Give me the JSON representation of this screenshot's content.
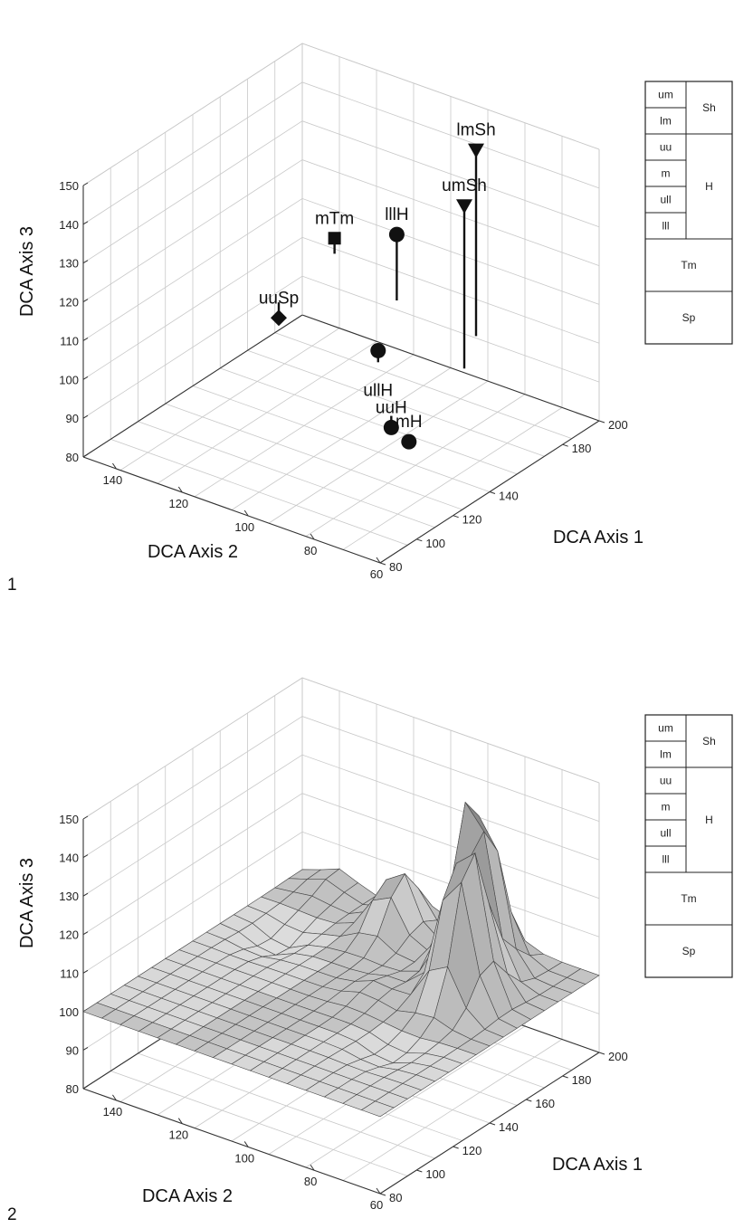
{
  "chart_data": [
    {
      "panel_label": "1",
      "type": "scatter",
      "xlabel": "DCA Axis 1",
      "ylabel": "DCA Axis 2",
      "zlabel": "DCA Axis 3",
      "x_ticks": [
        "80",
        "100",
        "120",
        "140",
        "180",
        "200"
      ],
      "y_ticks": [
        "60",
        "80",
        "100",
        "120",
        "140"
      ],
      "z_ticks": [
        "80",
        "90",
        "100",
        "110",
        "120",
        "130",
        "140",
        "150"
      ],
      "xlim": [
        80,
        200
      ],
      "ylim": [
        60,
        150
      ],
      "zlim": [
        80,
        150
      ],
      "points": [
        {
          "label": "lmSh",
          "marker": "triangle-down",
          "x": 165,
          "y": 135,
          "z": 148
        },
        {
          "label": "umSh",
          "marker": "triangle-down",
          "x": 175,
          "y": 120,
          "z": 142
        },
        {
          "label": "lllH",
          "marker": "circle",
          "x": 130,
          "y": 138,
          "z": 117
        },
        {
          "label": "ullH",
          "marker": "circle",
          "x": 150,
          "y": 110,
          "z": 103
        },
        {
          "label": "uuH",
          "marker": "circle",
          "x": 175,
          "y": 90,
          "z": 97
        },
        {
          "label": "mH",
          "marker": "circle",
          "x": 190,
          "y": 82,
          "z": 100
        },
        {
          "label": "mTm",
          "marker": "square",
          "x": 95,
          "y": 148,
          "z": 104
        },
        {
          "label": "uuSp",
          "marker": "diamond",
          "x": 100,
          "y": 120,
          "z": 96
        }
      ]
    },
    {
      "panel_label": "2",
      "type": "surface",
      "xlabel": "DCA Axis 1",
      "ylabel": "DCA Axis 2",
      "zlabel": "DCA Axis 3",
      "x_ticks": [
        "80",
        "100",
        "120",
        "140",
        "160",
        "180",
        "200"
      ],
      "y_ticks": [
        "60",
        "80",
        "100",
        "120",
        "140"
      ],
      "z_ticks": [
        "80",
        "90",
        "100",
        "110",
        "120",
        "130",
        "140",
        "150"
      ],
      "xlim": [
        80,
        200
      ],
      "ylim": [
        60,
        150
      ],
      "zlim": [
        80,
        150
      ],
      "surface_peaks": [
        {
          "x": 165,
          "y": 135,
          "z": 148
        },
        {
          "x": 175,
          "y": 120,
          "z": 142
        },
        {
          "x": 130,
          "y": 138,
          "z": 117
        },
        {
          "x": 150,
          "y": 110,
          "z": 103
        },
        {
          "x": 175,
          "y": 90,
          "z": 97
        },
        {
          "x": 190,
          "y": 82,
          "z": 100
        },
        {
          "x": 95,
          "y": 148,
          "z": 104
        },
        {
          "x": 100,
          "y": 120,
          "z": 96
        }
      ],
      "surface_base": 100
    }
  ],
  "legend": {
    "left_cells": [
      "um",
      "lm",
      "uu",
      "m",
      "ull",
      "lll"
    ],
    "right_cells": [
      "Sh",
      "H"
    ],
    "full_cells": [
      "Tm",
      "Sp"
    ]
  },
  "colors": {
    "marker": "#111111",
    "grid": "#c8c8c8",
    "axis": "#333333",
    "surface_light": "#e4e4e4",
    "surface_dark": "#8a8a8a"
  }
}
